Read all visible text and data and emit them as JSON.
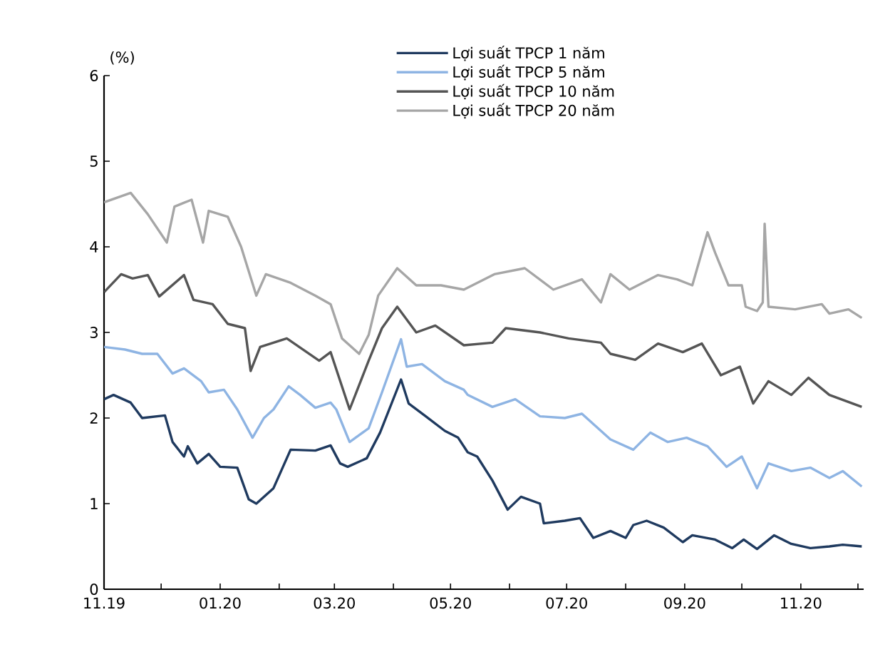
{
  "chart_data": {
    "type": "line",
    "ylabel": "(%)",
    "xlim": [
      "2019-11-01",
      "2020-12-04"
    ],
    "ylim": [
      0,
      6
    ],
    "yticks": [
      0,
      1,
      2,
      3,
      4,
      5,
      6
    ],
    "xticks": [
      {
        "value": "2019-11-01",
        "label": "11.19"
      },
      {
        "value": "2019-12-01",
        "label": null
      },
      {
        "value": "2020-01-01",
        "label": "01.20"
      },
      {
        "value": "2020-02-01",
        "label": null
      },
      {
        "value": "2020-03-01",
        "label": "03.20"
      },
      {
        "value": "2020-04-01",
        "label": null
      },
      {
        "value": "2020-05-01",
        "label": "05.20"
      },
      {
        "value": "2020-06-01",
        "label": null
      },
      {
        "value": "2020-07-01",
        "label": "07.20"
      },
      {
        "value": "2020-08-01",
        "label": null
      },
      {
        "value": "2020-09-01",
        "label": "09.20"
      },
      {
        "value": "2020-10-01",
        "label": null
      },
      {
        "value": "2020-11-01",
        "label": "11.20"
      },
      {
        "value": "2020-12-01",
        "label": null
      }
    ],
    "grid": false,
    "legend": "top",
    "marker": "none",
    "line_style": "solid",
    "series": [
      {
        "name": "Lợi suất TPCP 1 năm",
        "color": "#1f3a5f",
        "x": [
          "2019-11-01",
          "2019-11-06",
          "2019-11-15",
          "2019-11-21",
          "2019-12-03",
          "2019-12-07",
          "2019-12-13",
          "2019-12-15",
          "2019-12-20",
          "2019-12-26",
          "2020-01-01",
          "2020-01-10",
          "2020-01-16",
          "2020-01-20",
          "2020-01-29",
          "2020-02-07",
          "2020-02-20",
          "2020-02-28",
          "2020-03-04",
          "2020-03-08",
          "2020-03-18",
          "2020-03-25",
          "2020-04-05",
          "2020-04-09",
          "2020-04-18",
          "2020-04-28",
          "2020-05-05",
          "2020-05-10",
          "2020-05-15",
          "2020-05-23",
          "2020-05-31",
          "2020-06-07",
          "2020-06-17",
          "2020-06-19",
          "2020-06-30",
          "2020-07-08",
          "2020-07-15",
          "2020-07-24",
          "2020-08-01",
          "2020-08-05",
          "2020-08-12",
          "2020-08-21",
          "2020-08-31",
          "2020-09-05",
          "2020-09-17",
          "2020-09-26",
          "2020-10-02",
          "2020-10-09",
          "2020-10-18",
          "2020-10-27",
          "2020-11-06",
          "2020-11-16",
          "2020-11-23",
          "2020-12-03"
        ],
        "values": [
          2.22,
          2.27,
          2.18,
          2.0,
          2.03,
          1.72,
          1.55,
          1.67,
          1.47,
          1.58,
          1.43,
          1.42,
          1.05,
          1.0,
          1.18,
          1.63,
          1.62,
          1.68,
          1.47,
          1.43,
          1.53,
          1.83,
          2.45,
          2.17,
          2.02,
          1.85,
          1.77,
          1.6,
          1.55,
          1.27,
          0.93,
          1.08,
          1.0,
          0.77,
          0.8,
          0.83,
          0.6,
          0.68,
          0.6,
          0.75,
          0.8,
          0.72,
          0.55,
          0.63,
          0.58,
          0.48,
          0.58,
          0.47,
          0.63,
          0.53,
          0.48,
          0.5,
          0.52,
          0.5
        ]
      },
      {
        "name": "Lợi suất TPCP 5 năm",
        "color": "#8eb4e3",
        "x": [
          "2019-11-01",
          "2019-11-12",
          "2019-11-21",
          "2019-11-29",
          "2019-12-07",
          "2019-12-13",
          "2019-12-22",
          "2019-12-26",
          "2020-01-03",
          "2020-01-10",
          "2020-01-18",
          "2020-01-24",
          "2020-01-29",
          "2020-02-06",
          "2020-02-12",
          "2020-02-20",
          "2020-02-28",
          "2020-03-02",
          "2020-03-09",
          "2020-03-19",
          "2020-03-26",
          "2020-04-05",
          "2020-04-08",
          "2020-04-16",
          "2020-04-28",
          "2020-05-08",
          "2020-05-10",
          "2020-05-23",
          "2020-06-04",
          "2020-06-17",
          "2020-06-30",
          "2020-07-09",
          "2020-07-24",
          "2020-08-05",
          "2020-08-14",
          "2020-08-23",
          "2020-09-02",
          "2020-09-13",
          "2020-09-23",
          "2020-10-01",
          "2020-10-09",
          "2020-10-15",
          "2020-10-27",
          "2020-11-06",
          "2020-11-16",
          "2020-11-23",
          "2020-12-03"
        ],
        "values": [
          2.83,
          2.8,
          2.75,
          2.75,
          2.52,
          2.58,
          2.43,
          2.3,
          2.33,
          2.1,
          1.77,
          2.0,
          2.1,
          2.37,
          2.27,
          2.12,
          2.18,
          2.1,
          1.72,
          1.88,
          2.3,
          2.92,
          2.6,
          2.63,
          2.43,
          2.33,
          2.27,
          2.13,
          2.22,
          2.02,
          2.0,
          2.05,
          1.75,
          1.63,
          1.83,
          1.72,
          1.77,
          1.67,
          1.43,
          1.55,
          1.18,
          1.47,
          1.38,
          1.42,
          1.3,
          1.38,
          1.2
        ]
      },
      {
        "name": "Lợi suất TPCP 10 năm",
        "color": "#555555",
        "x": [
          "2019-11-01",
          "2019-11-10",
          "2019-11-16",
          "2019-11-24",
          "2019-11-30",
          "2019-12-13",
          "2019-12-18",
          "2019-12-28",
          "2020-01-05",
          "2020-01-14",
          "2020-01-17",
          "2020-01-22",
          "2020-02-05",
          "2020-02-22",
          "2020-02-28",
          "2020-03-09",
          "2020-03-19",
          "2020-03-26",
          "2020-04-03",
          "2020-04-13",
          "2020-04-23",
          "2020-05-08",
          "2020-05-23",
          "2020-05-30",
          "2020-06-17",
          "2020-07-02",
          "2020-07-19",
          "2020-07-24",
          "2020-08-06",
          "2020-08-18",
          "2020-08-31",
          "2020-09-10",
          "2020-09-20",
          "2020-09-30",
          "2020-10-07",
          "2020-10-15",
          "2020-10-27",
          "2020-11-05",
          "2020-11-16",
          "2020-12-03"
        ],
        "values": [
          3.47,
          3.68,
          3.63,
          3.67,
          3.42,
          3.67,
          3.38,
          3.33,
          3.1,
          3.05,
          2.55,
          2.83,
          2.93,
          2.67,
          2.77,
          2.1,
          2.67,
          3.05,
          3.3,
          3.0,
          3.08,
          2.85,
          2.88,
          3.05,
          3.0,
          2.93,
          2.88,
          2.75,
          2.68,
          2.87,
          2.77,
          2.87,
          2.5,
          2.6,
          2.17,
          2.43,
          2.27,
          2.47,
          2.27,
          2.13
        ]
      },
      {
        "name": "Lợi suất TPCP 20 năm",
        "color": "#a6a6a6",
        "x": [
          "2019-11-01",
          "2019-11-15",
          "2019-11-24",
          "2019-12-04",
          "2019-12-08",
          "2019-12-17",
          "2019-12-23",
          "2019-12-26",
          "2020-01-05",
          "2020-01-12",
          "2020-01-20",
          "2020-01-25",
          "2020-02-07",
          "2020-02-20",
          "2020-02-28",
          "2020-03-05",
          "2020-03-14",
          "2020-03-19",
          "2020-03-24",
          "2020-04-03",
          "2020-04-13",
          "2020-04-26",
          "2020-05-08",
          "2020-05-24",
          "2020-06-09",
          "2020-06-24",
          "2020-07-09",
          "2020-07-19",
          "2020-07-24",
          "2020-08-03",
          "2020-08-18",
          "2020-08-28",
          "2020-09-05",
          "2020-09-13",
          "2020-09-17",
          "2020-09-24",
          "2020-10-01",
          "2020-10-03",
          "2020-10-09",
          "2020-10-12",
          "2020-10-13",
          "2020-10-15",
          "2020-10-29",
          "2020-11-12",
          "2020-11-16",
          "2020-11-26",
          "2020-12-03"
        ],
        "values": [
          4.52,
          4.63,
          4.38,
          4.05,
          4.47,
          4.55,
          4.05,
          4.42,
          4.35,
          4.0,
          3.43,
          3.68,
          3.58,
          3.43,
          3.33,
          2.93,
          2.75,
          2.97,
          3.43,
          3.75,
          3.55,
          3.55,
          3.5,
          3.68,
          3.75,
          3.5,
          3.62,
          3.35,
          3.68,
          3.5,
          3.67,
          3.62,
          3.55,
          4.17,
          3.93,
          3.55,
          3.55,
          3.3,
          3.25,
          3.35,
          4.27,
          3.3,
          3.27,
          3.33,
          3.22,
          3.27,
          3.17
        ]
      }
    ]
  }
}
